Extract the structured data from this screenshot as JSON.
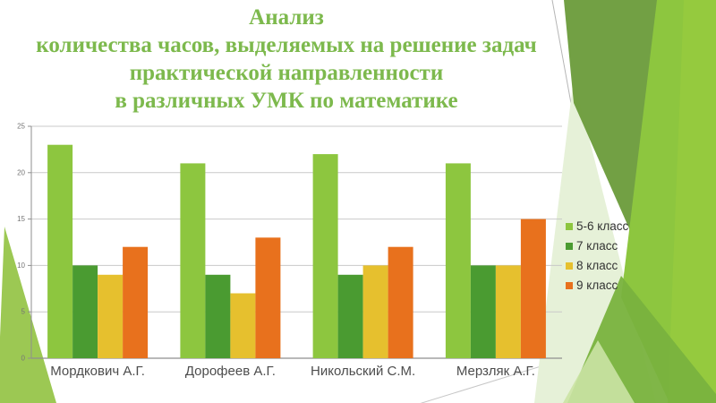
{
  "slide": {
    "title_lines": [
      "Анализ",
      "количества часов, выделяемых на решение задач",
      "практической направленности",
      "в различных УМК по математике"
    ],
    "title_color": "#7db94d"
  },
  "chart_data": {
    "type": "bar",
    "title": "",
    "xlabel": "",
    "ylabel": "",
    "categories": [
      "Мордкович А.Г.",
      "Дорофеев А.Г.",
      "Никольский С.М.",
      "Мерзляк А.Г."
    ],
    "series": [
      {
        "name": "5-6 класс",
        "color": "#8dc63f",
        "values": [
          23,
          21,
          22,
          21
        ]
      },
      {
        "name": "7 класс",
        "color": "#4a9b31",
        "values": [
          10,
          9,
          9,
          10
        ]
      },
      {
        "name": "8 класс",
        "color": "#e6c02e",
        "values": [
          9,
          7,
          10,
          10
        ]
      },
      {
        "name": "9 класс",
        "color": "#e8711d",
        "values": [
          12,
          13,
          12,
          15
        ]
      }
    ],
    "ylim": [
      0,
      25
    ],
    "yticks": [
      0,
      5,
      10,
      15,
      20,
      25
    ],
    "grid": true,
    "legend_position": "right",
    "colors": {
      "gridline": "#c9c9c9",
      "axis": "#8f8f8f",
      "tick_label": "#757575",
      "category_label": "#4d4d4d"
    }
  }
}
